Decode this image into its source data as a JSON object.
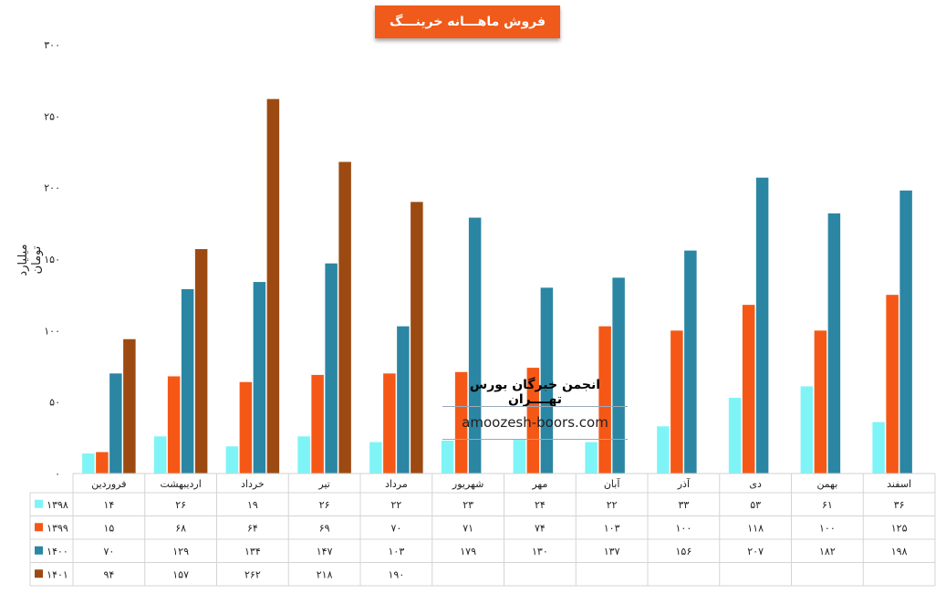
{
  "chart_data": {
    "type": "bar",
    "title": "فروش ماهـــانه خرینـــگ",
    "ylabel": "میلیارد تومان",
    "ylim": [
      0,
      300
    ],
    "yticks": [
      "۰",
      "۵۰",
      "۱۰۰",
      "۱۵۰",
      "۲۰۰",
      "۲۵۰",
      "۳۰۰"
    ],
    "ytick_values": [
      0,
      50,
      100,
      150,
      200,
      250,
      300
    ],
    "categories": [
      "فروردین",
      "اردیبهشت",
      "خرداد",
      "تیر",
      "مرداد",
      "شهریور",
      "مهر",
      "آبان",
      "آذر",
      "دی",
      "بهمن",
      "اسفند"
    ],
    "series": [
      {
        "name": "۱۳۹۸",
        "color": "#7ff4f6",
        "values": [
          14,
          26,
          19,
          26,
          22,
          23,
          24,
          22,
          33,
          53,
          61,
          36
        ],
        "labels": [
          "۱۴",
          "۲۶",
          "۱۹",
          "۲۶",
          "۲۲",
          "۲۳",
          "۲۴",
          "۲۲",
          "۳۳",
          "۵۳",
          "۶۱",
          "۳۶"
        ]
      },
      {
        "name": "۱۳۹۹",
        "color": "#f55816",
        "values": [
          15,
          68,
          64,
          69,
          70,
          71,
          74,
          103,
          100,
          118,
          100,
          125
        ],
        "labels": [
          "۱۵",
          "۶۸",
          "۶۴",
          "۶۹",
          "۷۰",
          "۷۱",
          "۷۴",
          "۱۰۳",
          "۱۰۰",
          "۱۱۸",
          "۱۰۰",
          "۱۲۵"
        ]
      },
      {
        "name": "۱۴۰۰",
        "color": "#2b86a3",
        "values": [
          70,
          129,
          134,
          147,
          103,
          179,
          130,
          137,
          156,
          207,
          182,
          198
        ],
        "labels": [
          "۷۰",
          "۱۲۹",
          "۱۳۴",
          "۱۴۷",
          "۱۰۳",
          "۱۷۹",
          "۱۳۰",
          "۱۳۷",
          "۱۵۶",
          "۲۰۷",
          "۱۸۲",
          "۱۹۸"
        ]
      },
      {
        "name": "۱۴۰۱",
        "color": "#9c4a12",
        "values": [
          94,
          157,
          262,
          218,
          190,
          null,
          null,
          null,
          null,
          null,
          null,
          null
        ],
        "labels": [
          "۹۴",
          "۱۵۷",
          "۲۶۲",
          "۲۱۸",
          "۱۹۰",
          "",
          "",
          "",
          "",
          "",
          "",
          ""
        ]
      }
    ],
    "grid": false,
    "legend": "data-table-left"
  },
  "watermark": {
    "title": "انجمن خبرگان بورس تهــــران",
    "url": "amoozesh-boors.com"
  }
}
